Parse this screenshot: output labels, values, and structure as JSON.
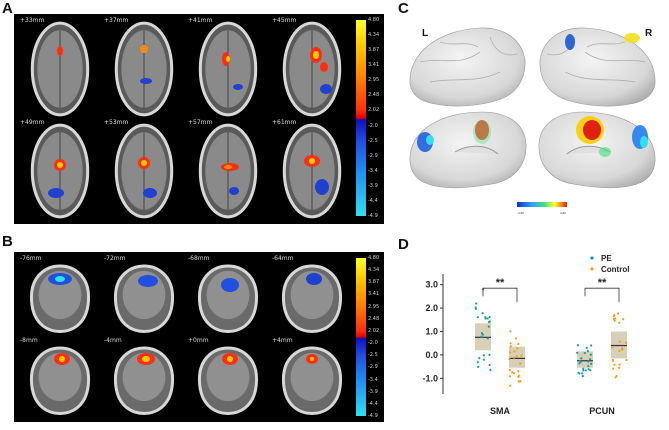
{
  "panels": {
    "a": {
      "letter": "A"
    },
    "b": {
      "letter": "B"
    },
    "c": {
      "letter": "C"
    },
    "d": {
      "letter": "D"
    }
  },
  "panel_a": {
    "slices": [
      "+33mm",
      "+37mm",
      "+41mm",
      "+45mm",
      "+49mm",
      "+53mm",
      "+57mm",
      "+61mm"
    ],
    "colorbar_ticks": [
      "4.80",
      "4.34",
      "3.87",
      "3.41",
      "2.95",
      "2.48",
      "2.02",
      "-2.0",
      "-2.5",
      "-2.9",
      "-3.4",
      "-3.9",
      "-4.4",
      "-4.9"
    ]
  },
  "panel_b": {
    "slices": [
      "-76mm",
      "-72mm",
      "-68mm",
      "-64mm",
      "-8mm",
      "-4mm",
      "+0mm",
      "+4mm"
    ],
    "colorbar_ticks": [
      "4.80",
      "4.34",
      "3.87",
      "3.41",
      "2.95",
      "2.48",
      "2.02",
      "-2.0",
      "-2.5",
      "-2.9",
      "-3.4",
      "-3.9",
      "-4.4",
      "-4.9"
    ]
  },
  "panel_c": {
    "left_hemi": "L",
    "right_hemi": "R",
    "bar_min": "-4.90",
    "bar_max": "4.80"
  },
  "colors": {
    "positive": "#e8231c",
    "negative": "#1f3fd8",
    "pe": "#1a9aa0",
    "control": "#f0a020",
    "box": "#c8c0a0"
  },
  "chart_data": {
    "type": "box",
    "categories": [
      "SMA",
      "PCUN"
    ],
    "series": [
      {
        "name": "PE",
        "color": "#1a9aa0",
        "box": [
          [
            0.2,
            0.75,
            1.35
          ],
          [
            -0.55,
            -0.25,
            0.15
          ]
        ]
      },
      {
        "name": "Control",
        "color": "#f0a020",
        "box": [
          [
            -0.55,
            -0.15,
            0.35
          ],
          [
            -0.15,
            0.4,
            1.0
          ]
        ]
      }
    ],
    "ylim": [
      -1.5,
      3.2
    ],
    "yticks": [
      "3.0",
      "2.0",
      "1.0",
      "0.0",
      "-1.0"
    ],
    "annotations": [
      "**",
      "**"
    ]
  }
}
